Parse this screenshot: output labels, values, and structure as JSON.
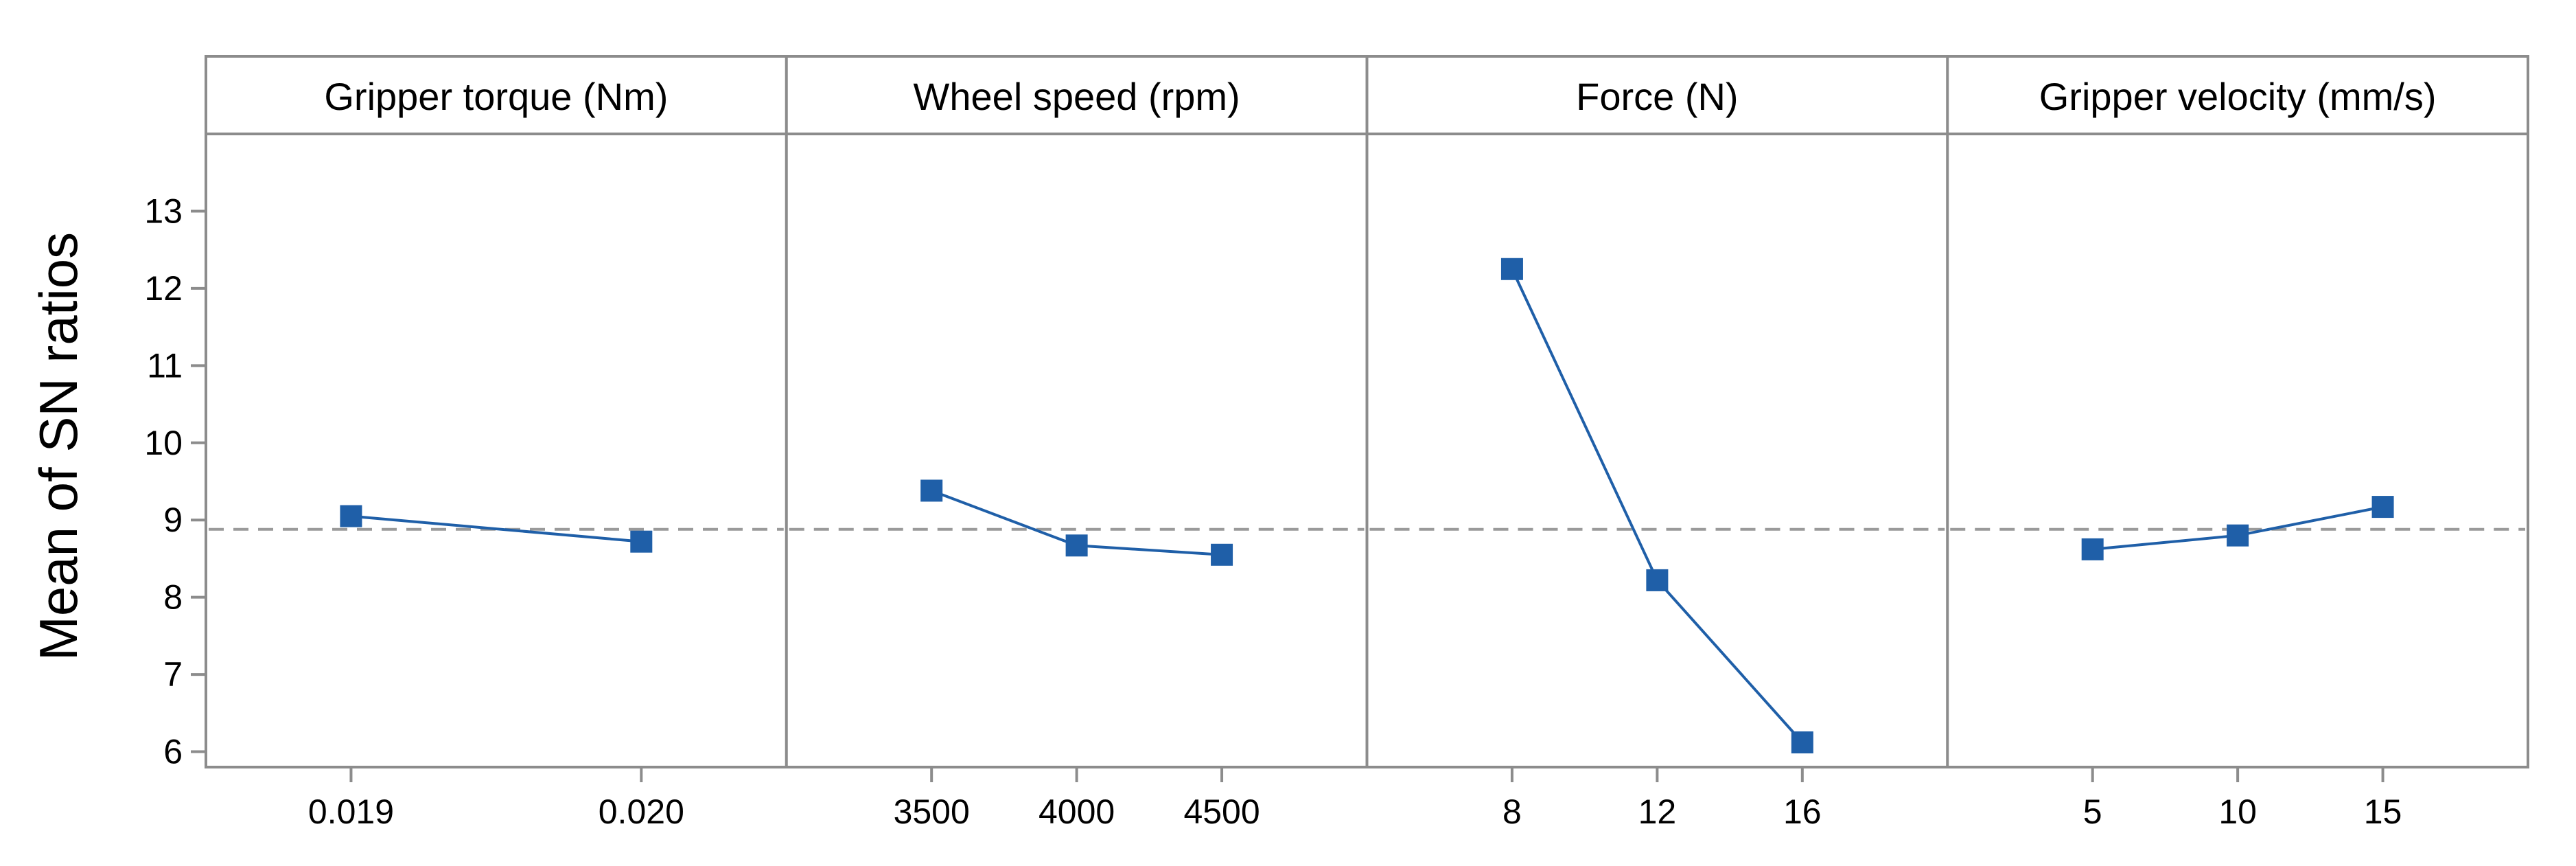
{
  "chart_data": {
    "type": "line",
    "title": "",
    "ylabel": "Mean of SN ratios",
    "ylim": [
      5.8,
      14.0
    ],
    "yticks": [
      6,
      7,
      8,
      9,
      10,
      11,
      12,
      13
    ],
    "reference_mean": 8.88,
    "series_color": "#1f5fa8",
    "reference_color": "#9a9a9a",
    "panels": [
      {
        "name": "Gripper torque (Nm)",
        "categories": [
          "0.019",
          "0.020"
        ],
        "values": [
          9.05,
          8.72
        ]
      },
      {
        "name": "Wheel speed (rpm)",
        "categories": [
          "3500",
          "4000",
          "4500"
        ],
        "values": [
          9.38,
          8.67,
          8.55
        ]
      },
      {
        "name": "Force (N)",
        "categories": [
          "8",
          "12",
          "16"
        ],
        "values": [
          12.25,
          8.22,
          6.12
        ]
      },
      {
        "name": "Gripper velocity (mm/s)",
        "categories": [
          "5",
          "10",
          "15"
        ],
        "values": [
          8.62,
          8.8,
          9.17
        ]
      }
    ]
  }
}
